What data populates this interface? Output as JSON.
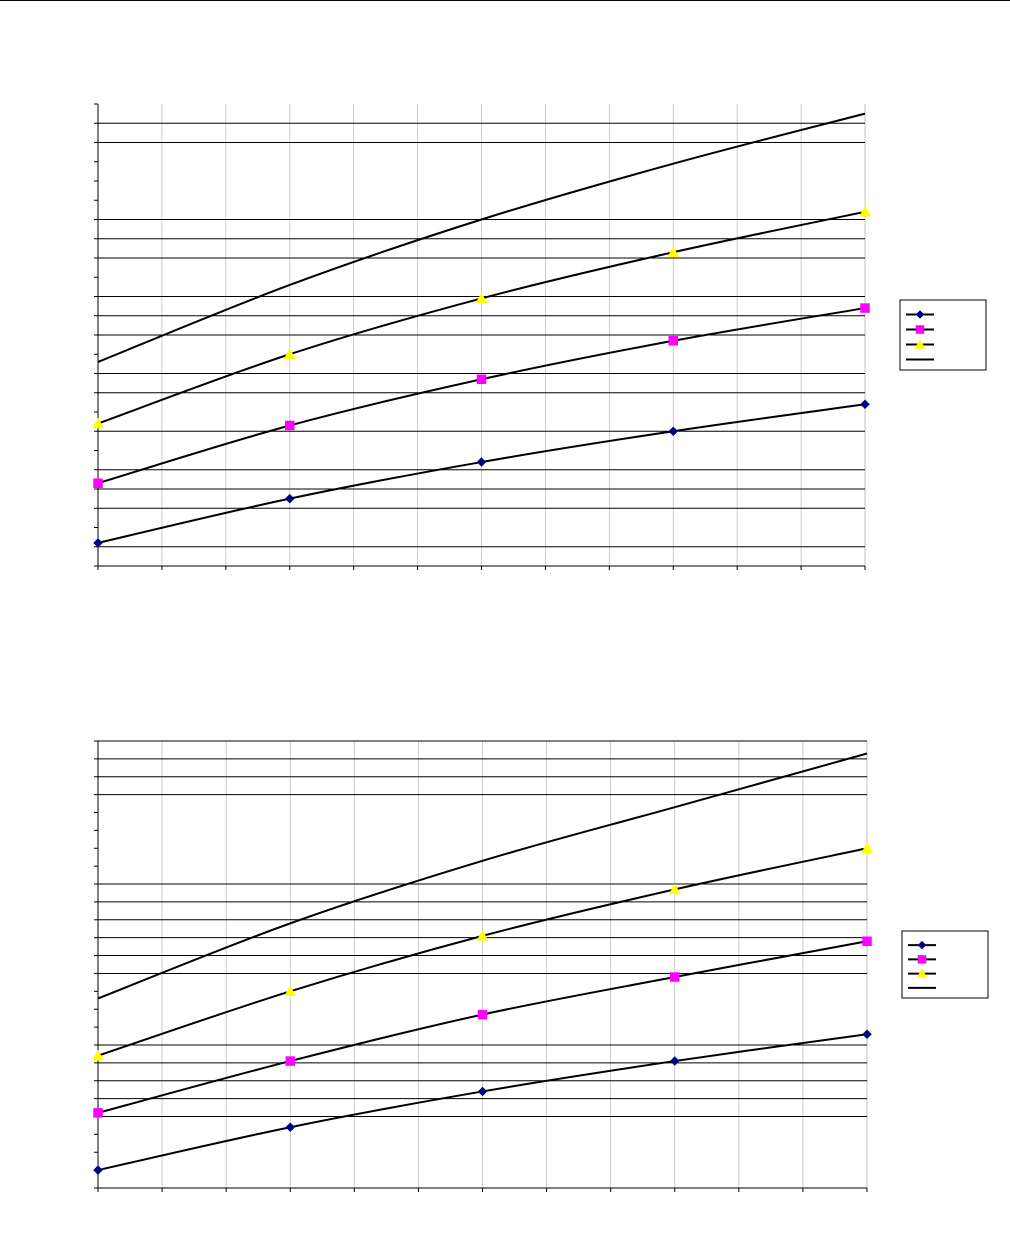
{
  "colors": {
    "background": "#ffffff",
    "axis": "#000000",
    "major_grid": "#000000",
    "minor_grid": "#c0c0c0",
    "curve": "#000000",
    "series_markers": [
      "#000080",
      "#ff00ff",
      "#ffff00",
      null
    ]
  },
  "chart_data": [
    {
      "type": "line",
      "title": "",
      "xlabel": "",
      "ylabel": "",
      "xlim": [
        0,
        12
      ],
      "ylim": [
        0,
        24
      ],
      "xticks": [
        0,
        1,
        2,
        3,
        4,
        5,
        6,
        7,
        8,
        9,
        10,
        11,
        12
      ],
      "yticks": [
        0,
        1,
        2,
        3,
        4,
        5,
        6,
        7,
        8,
        9,
        10,
        11,
        12,
        13,
        14,
        15,
        16,
        17,
        18,
        19,
        20,
        21,
        22,
        23,
        24
      ],
      "tick_labels_visible": false,
      "grid": {
        "vertical": "light",
        "horizontal_major": [
          1,
          3,
          4,
          5,
          7,
          9,
          10,
          12,
          13,
          14,
          16,
          17,
          18,
          22,
          23
        ]
      },
      "legend": {
        "position": "right",
        "labels_visible": false
      },
      "series": [
        {
          "marker": "diamond",
          "x": [
            0,
            3,
            6,
            9,
            12
          ],
          "y": [
            1.2,
            3.5,
            5.4,
            7.0,
            8.4
          ]
        },
        {
          "marker": "square",
          "x": [
            0,
            3,
            6,
            9,
            12
          ],
          "y": [
            4.3,
            7.3,
            9.7,
            11.7,
            13.4
          ]
        },
        {
          "marker": "triangle",
          "x": [
            0,
            3,
            6,
            9,
            12
          ],
          "y": [
            7.4,
            11.0,
            13.9,
            16.3,
            18.4
          ]
        },
        {
          "marker": "none",
          "x": [
            0,
            3,
            6,
            9,
            12
          ],
          "y": [
            10.6,
            14.6,
            18.0,
            20.9,
            23.5
          ]
        }
      ]
    },
    {
      "type": "line",
      "title": "",
      "xlabel": "",
      "ylabel": "",
      "xlim": [
        0,
        12
      ],
      "ylim": [
        0,
        25
      ],
      "xticks": [
        0,
        1,
        2,
        3,
        4,
        5,
        6,
        7,
        8,
        9,
        10,
        11,
        12
      ],
      "yticks": [
        0,
        1,
        2,
        3,
        4,
        5,
        6,
        7,
        8,
        9,
        10,
        11,
        12,
        13,
        14,
        15,
        16,
        17,
        18,
        19,
        20,
        21,
        22,
        23,
        24,
        25
      ],
      "tick_labels_visible": false,
      "grid": {
        "vertical": "light",
        "horizontal_major": [
          4,
          5,
          6,
          7,
          8,
          12,
          13,
          14,
          15,
          16,
          17,
          22,
          23,
          24,
          25
        ]
      },
      "legend": {
        "position": "right",
        "labels_visible": false
      },
      "series": [
        {
          "marker": "diamond",
          "x": [
            0,
            3,
            6,
            9,
            12
          ],
          "y": [
            1.0,
            3.4,
            5.4,
            7.1,
            8.6
          ]
        },
        {
          "marker": "square",
          "x": [
            0,
            3,
            6,
            9,
            12
          ],
          "y": [
            4.2,
            7.1,
            9.7,
            11.8,
            13.8
          ]
        },
        {
          "marker": "triangle",
          "x": [
            0,
            3,
            6,
            9,
            12
          ],
          "y": [
            7.4,
            11.0,
            14.1,
            16.7,
            19.0
          ]
        },
        {
          "marker": "none",
          "x": [
            0,
            3,
            6,
            9,
            12
          ],
          "y": [
            10.6,
            14.8,
            18.3,
            21.3,
            24.3
          ]
        }
      ]
    }
  ]
}
